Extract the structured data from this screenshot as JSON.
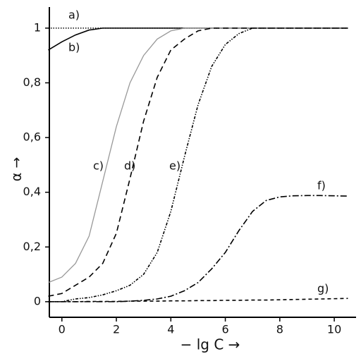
{
  "chart_data": {
    "type": "line",
    "x_label": "− lg C →",
    "y_label": "α →",
    "x": [
      -0.5,
      0,
      0.5,
      1,
      1.5,
      2,
      2.5,
      3,
      3.5,
      4,
      4.5,
      5,
      5.5,
      6,
      6.5,
      7,
      7.5,
      8,
      8.5,
      9,
      9.5,
      10,
      10.5
    ],
    "xlim": [
      -0.46,
      10.8
    ],
    "ylim": [
      -0.057,
      1.077
    ],
    "xticks": [
      0,
      2,
      4,
      6,
      8,
      10
    ],
    "yticks": [
      0,
      {
        "value": 0.2,
        "label": "0,2"
      },
      {
        "value": 0.4,
        "label": "0,4"
      },
      {
        "value": 0.6,
        "label": "0,6"
      },
      {
        "value": 0.8,
        "label": "0,8"
      },
      1
    ],
    "series": [
      {
        "name": "a)",
        "color": "#000000",
        "dash": "dotted",
        "values": [
          1,
          1,
          1,
          1,
          1,
          1,
          1,
          1,
          1,
          1,
          1,
          1,
          1,
          1,
          1,
          1,
          1,
          1,
          1,
          1,
          1,
          1,
          1
        ]
      },
      {
        "name": "b)",
        "color": "#000000",
        "dash": "solid",
        "values": [
          0.92,
          0.95,
          0.975,
          0.993,
          1,
          1,
          1,
          1,
          1,
          1,
          1,
          1,
          1,
          1,
          1,
          1,
          1,
          1,
          1,
          1,
          1,
          1,
          1
        ]
      },
      {
        "name": "c)",
        "color": "#999999",
        "dash": "solid",
        "values": [
          0.07,
          0.09,
          0.14,
          0.24,
          0.44,
          0.64,
          0.8,
          0.9,
          0.96,
          0.99,
          1,
          1,
          1,
          1,
          1,
          1,
          1,
          1,
          1,
          1,
          1,
          1,
          1
        ]
      },
      {
        "name": "d)",
        "color": "#000000",
        "dash": "dashed",
        "values": [
          0.02,
          0.03,
          0.06,
          0.09,
          0.14,
          0.25,
          0.45,
          0.66,
          0.82,
          0.92,
          0.96,
          0.99,
          1,
          1,
          1,
          1,
          1,
          1,
          1,
          1,
          1,
          1,
          1
        ]
      },
      {
        "name": "e)",
        "color": "#000000",
        "dash": "dashdotdot",
        "values": [
          0,
          0,
          0.01,
          0.015,
          0.025,
          0.04,
          0.06,
          0.1,
          0.18,
          0.33,
          0.53,
          0.72,
          0.86,
          0.94,
          0.98,
          1,
          1,
          1,
          1,
          1,
          1,
          1,
          1
        ]
      },
      {
        "name": "f)",
        "color": "#000000",
        "dash": "dashdot",
        "values": [
          0,
          0,
          0,
          0,
          0,
          0,
          0.002,
          0.005,
          0.01,
          0.02,
          0.04,
          0.07,
          0.12,
          0.18,
          0.26,
          0.33,
          0.37,
          0.383,
          0.387,
          0.388,
          0.388,
          0.387,
          0.386
        ]
      },
      {
        "name": "g)",
        "color": "#000000",
        "dash": "dashed-short",
        "values": [
          0,
          0,
          0,
          0.001,
          0.001,
          0.001,
          0.002,
          0.002,
          0.002,
          0.003,
          0.003,
          0.004,
          0.004,
          0.005,
          0.005,
          0.006,
          0.006,
          0.007,
          0.008,
          0.009,
          0.01,
          0.011,
          0.012
        ]
      }
    ]
  }
}
